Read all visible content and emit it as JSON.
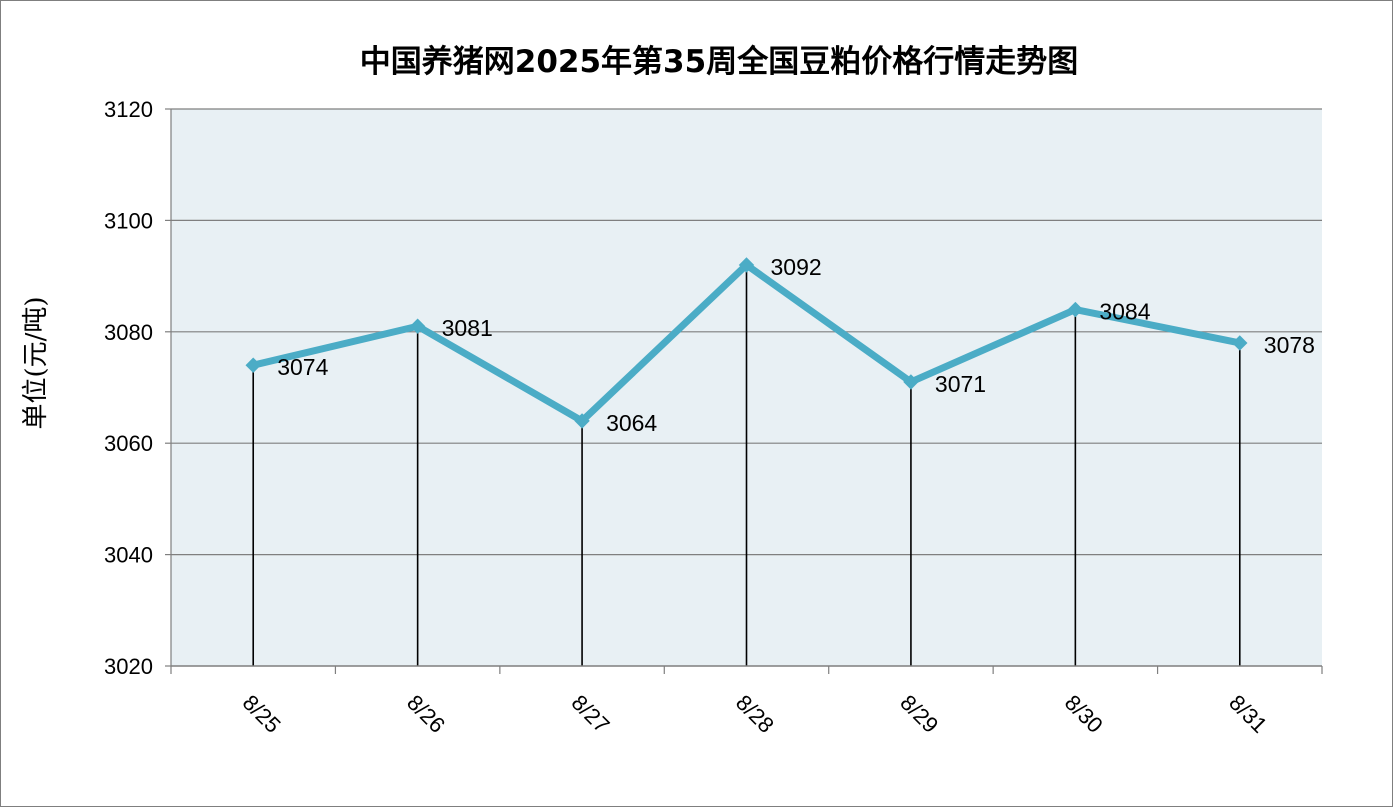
{
  "chart_data": {
    "type": "line",
    "title": "中国养猪网2025年第35周全国豆粕价格行情走势图",
    "xlabel": "",
    "ylabel": "单位(元/吨)",
    "categories": [
      "8/25",
      "8/26",
      "8/27",
      "8/28",
      "8/29",
      "8/30",
      "8/31"
    ],
    "series": [
      {
        "values": [
          3074,
          3081,
          3064,
          3092,
          3071,
          3084,
          3078
        ]
      }
    ],
    "data_labels": [
      "3074",
      "3081",
      "3064",
      "3092",
      "3071",
      "3084",
      "3078"
    ],
    "ylim": [
      3020,
      3120
    ],
    "yticks": [
      "3020",
      "3040",
      "3060",
      "3080",
      "3100",
      "3120"
    ],
    "grid": true,
    "drop_lines": true,
    "colors": {
      "line": "#4BACC6",
      "plot_background": "#E8F0F4",
      "gridline": "#7F7F7F"
    }
  }
}
